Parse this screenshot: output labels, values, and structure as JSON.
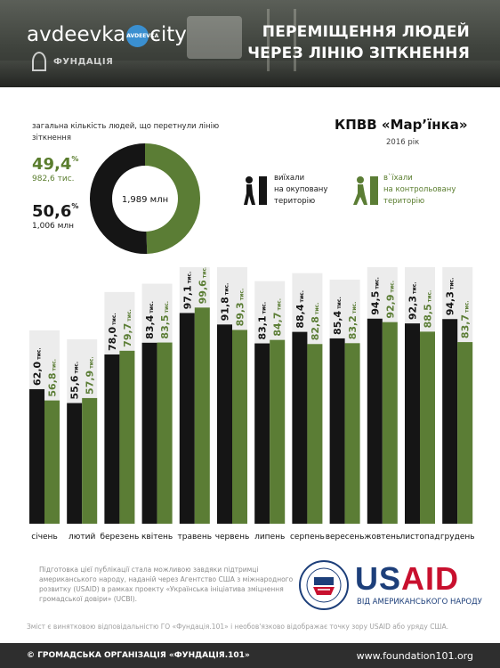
{
  "header": {
    "title_line1": "ПЕРЕМІЩЕННЯ ЛЮДЕЙ",
    "title_line2": "ЧЕРЕЗ ЛІНІЮ ЗІТКНЕННЯ",
    "brand_left": "avdeevka",
    "brand_right": "city",
    "brand_ring": "AVDEEVKA",
    "org_logo_text": "ФУНДАЦІЯ"
  },
  "summary": {
    "label": "загальна кількість людей, що перетнули лінію зіткнення",
    "green_pct": "49,4",
    "green_pct_unit": "%",
    "green_abs": "982,6 тис.",
    "black_pct": "50,6",
    "black_pct_unit": "%",
    "black_abs": "1,006 млн",
    "total": "1,989 млн"
  },
  "kpvv": {
    "title": "КПВВ «Мар’їнка»",
    "year": "2016 рік"
  },
  "legend": {
    "left_lines": [
      "виїхали",
      "на окуповану",
      "територію"
    ],
    "right_lines": [
      "в`їхали",
      "на контрольовану",
      "територію"
    ]
  },
  "colors": {
    "left": "#151515",
    "right": "#5b7d35",
    "column_bg": "#ececec",
    "header_bg": "#3f433d"
  },
  "chart_data": {
    "type": "bar",
    "categories": [
      "січень",
      "лютий",
      "березень",
      "квітень",
      "травень",
      "червень",
      "липень",
      "серпень",
      "вересень",
      "жовтень",
      "листопад",
      "грудень"
    ],
    "series": [
      {
        "name": "виїхали на окуповану територію",
        "values": [
          62.0,
          55.6,
          78.0,
          83.4,
          97.1,
          91.8,
          83.1,
          88.4,
          85.4,
          94.5,
          92.3,
          94.3
        ],
        "labels": [
          "62,0",
          "55,6",
          "78,0",
          "83,4",
          "97,1",
          "91,8",
          "83,1",
          "88,4",
          "85,4",
          "94,5",
          "92,3",
          "94,3"
        ]
      },
      {
        "name": "в`їхали на контрольовану територію",
        "values": [
          56.8,
          57.9,
          79.7,
          83.5,
          99.6,
          89.3,
          84.7,
          82.8,
          83.2,
          92.9,
          88.5,
          83.7
        ],
        "labels": [
          "56,8",
          "57,9",
          "79,7",
          "83,5",
          "99,6",
          "89,3",
          "84,7",
          "82,8",
          "83,2",
          "92,9",
          "88,5",
          "83,7"
        ]
      }
    ],
    "unit_label": "тис.",
    "ylim": [
      0,
      110
    ],
    "donut": {
      "values": [
        49.4,
        50.6
      ]
    }
  },
  "footer": {
    "note": "Підготовка цієї публікації стала можливою завдяки підтримці американського народу, наданій через Агентство США з міжнародного розвитку (USAID) в рамках проекту «Українська ініціатива зміцнення громадської довіри» (UCBI).",
    "usaid_us": "US",
    "usaid_aid": "AID",
    "usaid_sub": "ВІД АМЕРИКАНСЬКОГО НАРОДУ",
    "disclaimer": "Зміст є винятковою відповідальністю ГО «Фундація.101» і необов'язково відображає точку зору USAID або уряду США.",
    "org": "© ГРОМАДСЬКА ОРГАНІЗАЦІЯ «ФУНДАЦІЯ.101»",
    "url": "www.foundation101.org"
  }
}
